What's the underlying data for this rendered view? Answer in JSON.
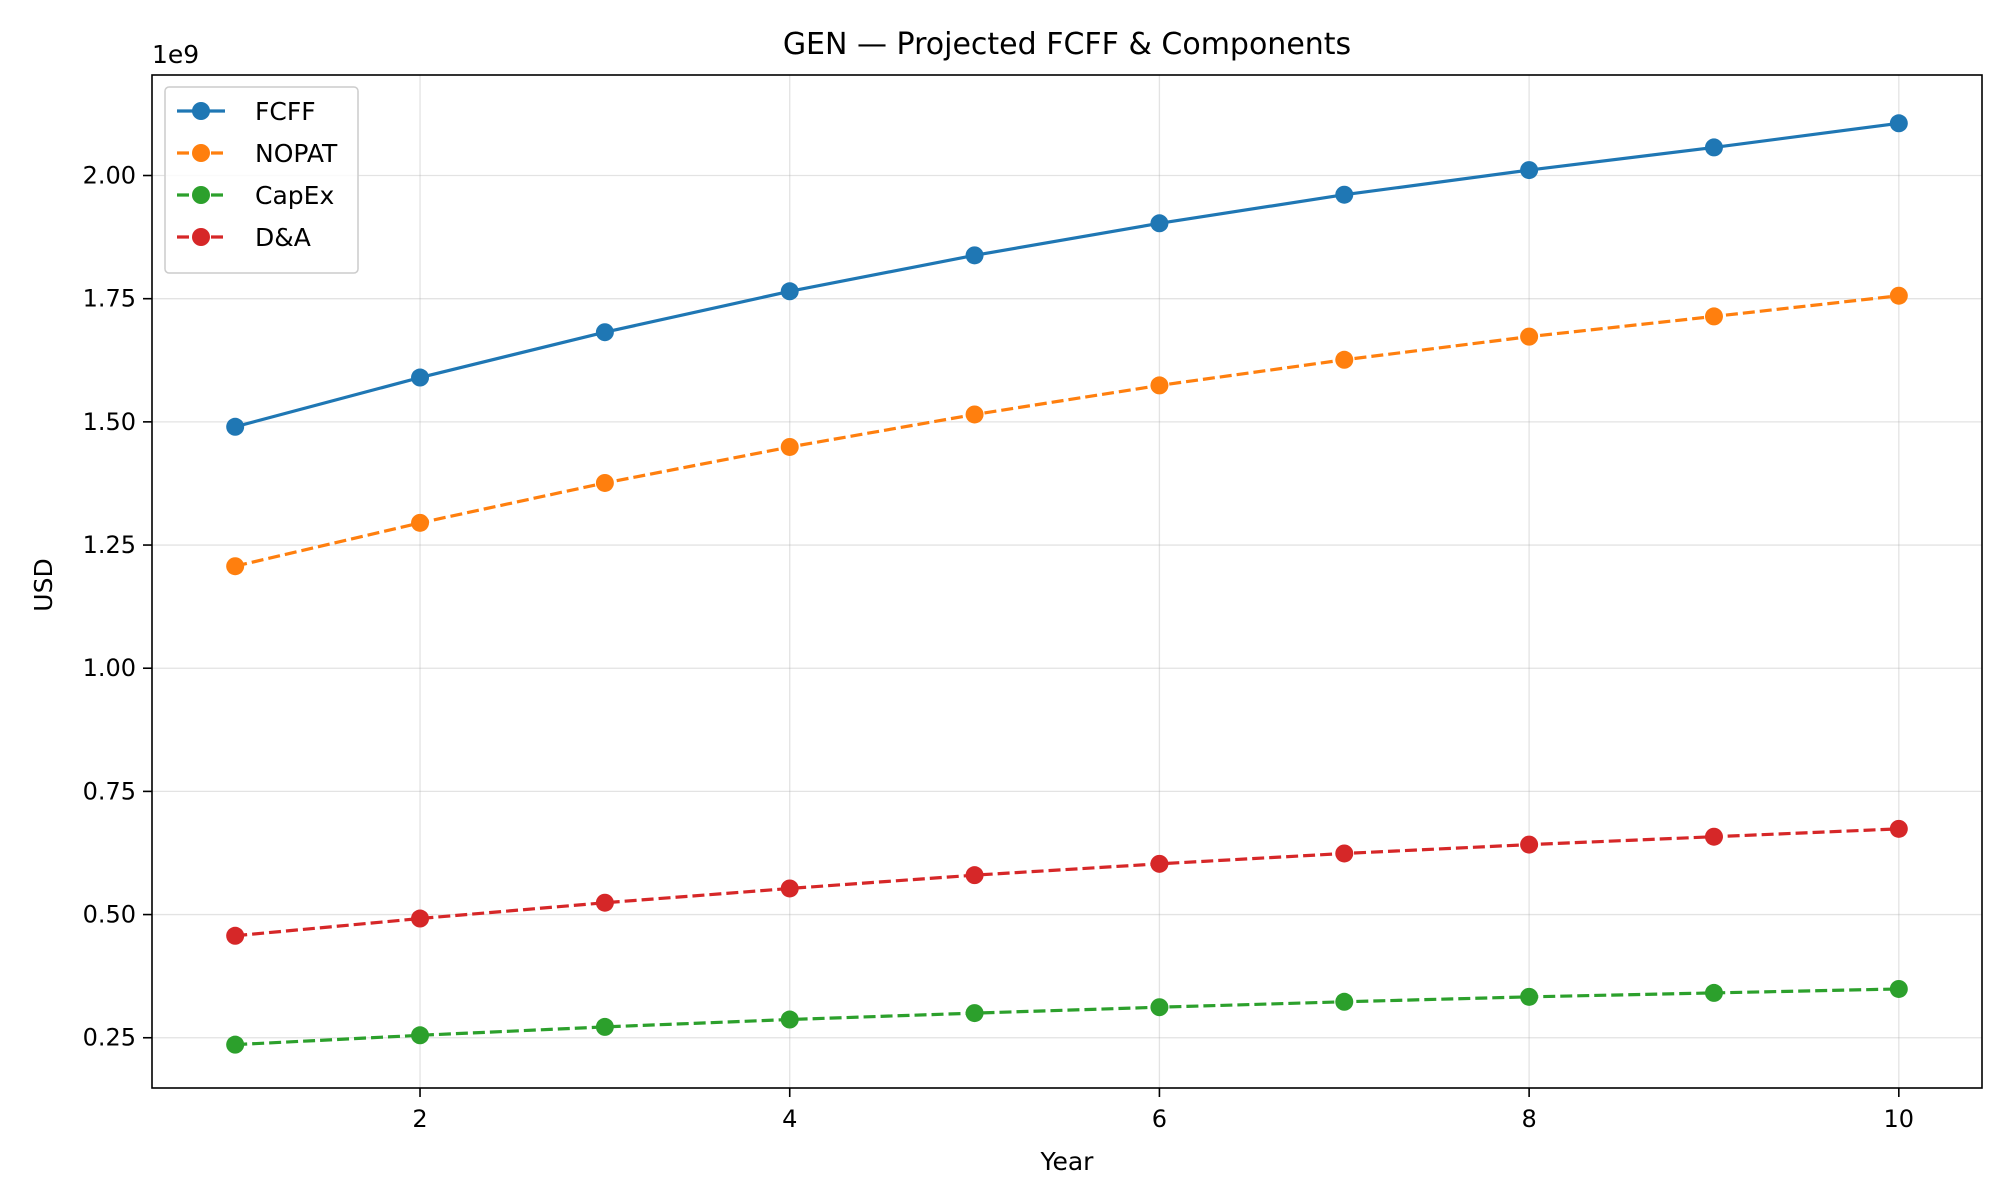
{
  "chart_data": {
    "type": "line",
    "title": "GEN — Projected FCFF & Components",
    "xlabel": "Year",
    "ylabel": "USD",
    "y_offset_label": "1e9",
    "x": [
      1,
      2,
      3,
      4,
      5,
      6,
      7,
      8,
      9,
      10
    ],
    "xlim": [
      0.55,
      10.45
    ],
    "ylim": [
      0.148,
      2.204
    ],
    "x_ticks": [
      2,
      4,
      6,
      8,
      10
    ],
    "x_tick_labels": [
      "2",
      "4",
      "6",
      "8",
      "10"
    ],
    "y_ticks": [
      0.25,
      0.5,
      0.75,
      1.0,
      1.25,
      1.5,
      1.75,
      2.0
    ],
    "y_tick_labels": [
      "0.25",
      "0.50",
      "0.75",
      "1.00",
      "1.25",
      "1.50",
      "1.75",
      "2.00"
    ],
    "grid": true,
    "legend_position": "upper-left",
    "series": [
      {
        "name": "FCFF",
        "color": "#1f77b4",
        "style": "solid",
        "values": [
          1.49,
          1.59,
          1.682,
          1.765,
          1.838,
          1.903,
          1.961,
          2.011,
          2.057,
          2.106
        ]
      },
      {
        "name": "NOPAT",
        "color": "#ff7f0e",
        "style": "dashed",
        "values": [
          1.207,
          1.295,
          1.376,
          1.449,
          1.515,
          1.574,
          1.626,
          1.673,
          1.714,
          1.756
        ]
      },
      {
        "name": "CapEx",
        "color": "#2ca02c",
        "style": "dashed",
        "values": [
          0.236,
          0.255,
          0.272,
          0.287,
          0.3,
          0.312,
          0.323,
          0.333,
          0.341,
          0.349
        ]
      },
      {
        "name": "D&A",
        "color": "#d62728",
        "style": "dashed",
        "values": [
          0.457,
          0.492,
          0.524,
          0.553,
          0.58,
          0.603,
          0.624,
          0.642,
          0.658,
          0.674
        ]
      }
    ]
  }
}
